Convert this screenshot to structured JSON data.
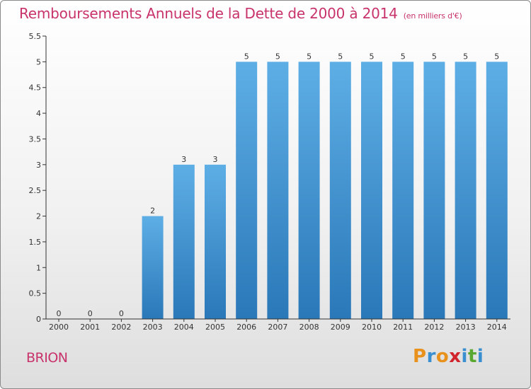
{
  "title": "Remboursements Annuels de la Dette de 2000 à 2014",
  "unit": "(en milliers d'€)",
  "commune": "BRION",
  "logo_text": "Proxiti",
  "colors": {
    "title": "#c8336b",
    "bar_top": "#5eaee6",
    "bar_bottom": "#2a78b8",
    "axis": "#333333"
  },
  "chart_data": {
    "type": "bar",
    "title": "Remboursements Annuels de la Dette de 2000 à 2014",
    "xlabel": "",
    "ylabel": "",
    "ylim": [
      0,
      5.5
    ],
    "yticks": [
      "0",
      "0.5",
      "1",
      "1.5",
      "2",
      "2.5",
      "3",
      "3.5",
      "4",
      "4.5",
      "5",
      "5.5"
    ],
    "grid": false,
    "categories": [
      "2000",
      "2001",
      "2002",
      "2003",
      "2004",
      "2005",
      "2006",
      "2007",
      "2008",
      "2009",
      "2010",
      "2011",
      "2012",
      "2013",
      "2014"
    ],
    "values": [
      0,
      0,
      0,
      2,
      3,
      3,
      5,
      5,
      5,
      5,
      5,
      5,
      5,
      5,
      5
    ],
    "labels": [
      "0",
      "0",
      "0",
      "2",
      "3",
      "3",
      "5",
      "5",
      "5",
      "5",
      "5",
      "5",
      "5",
      "5",
      "5"
    ]
  }
}
